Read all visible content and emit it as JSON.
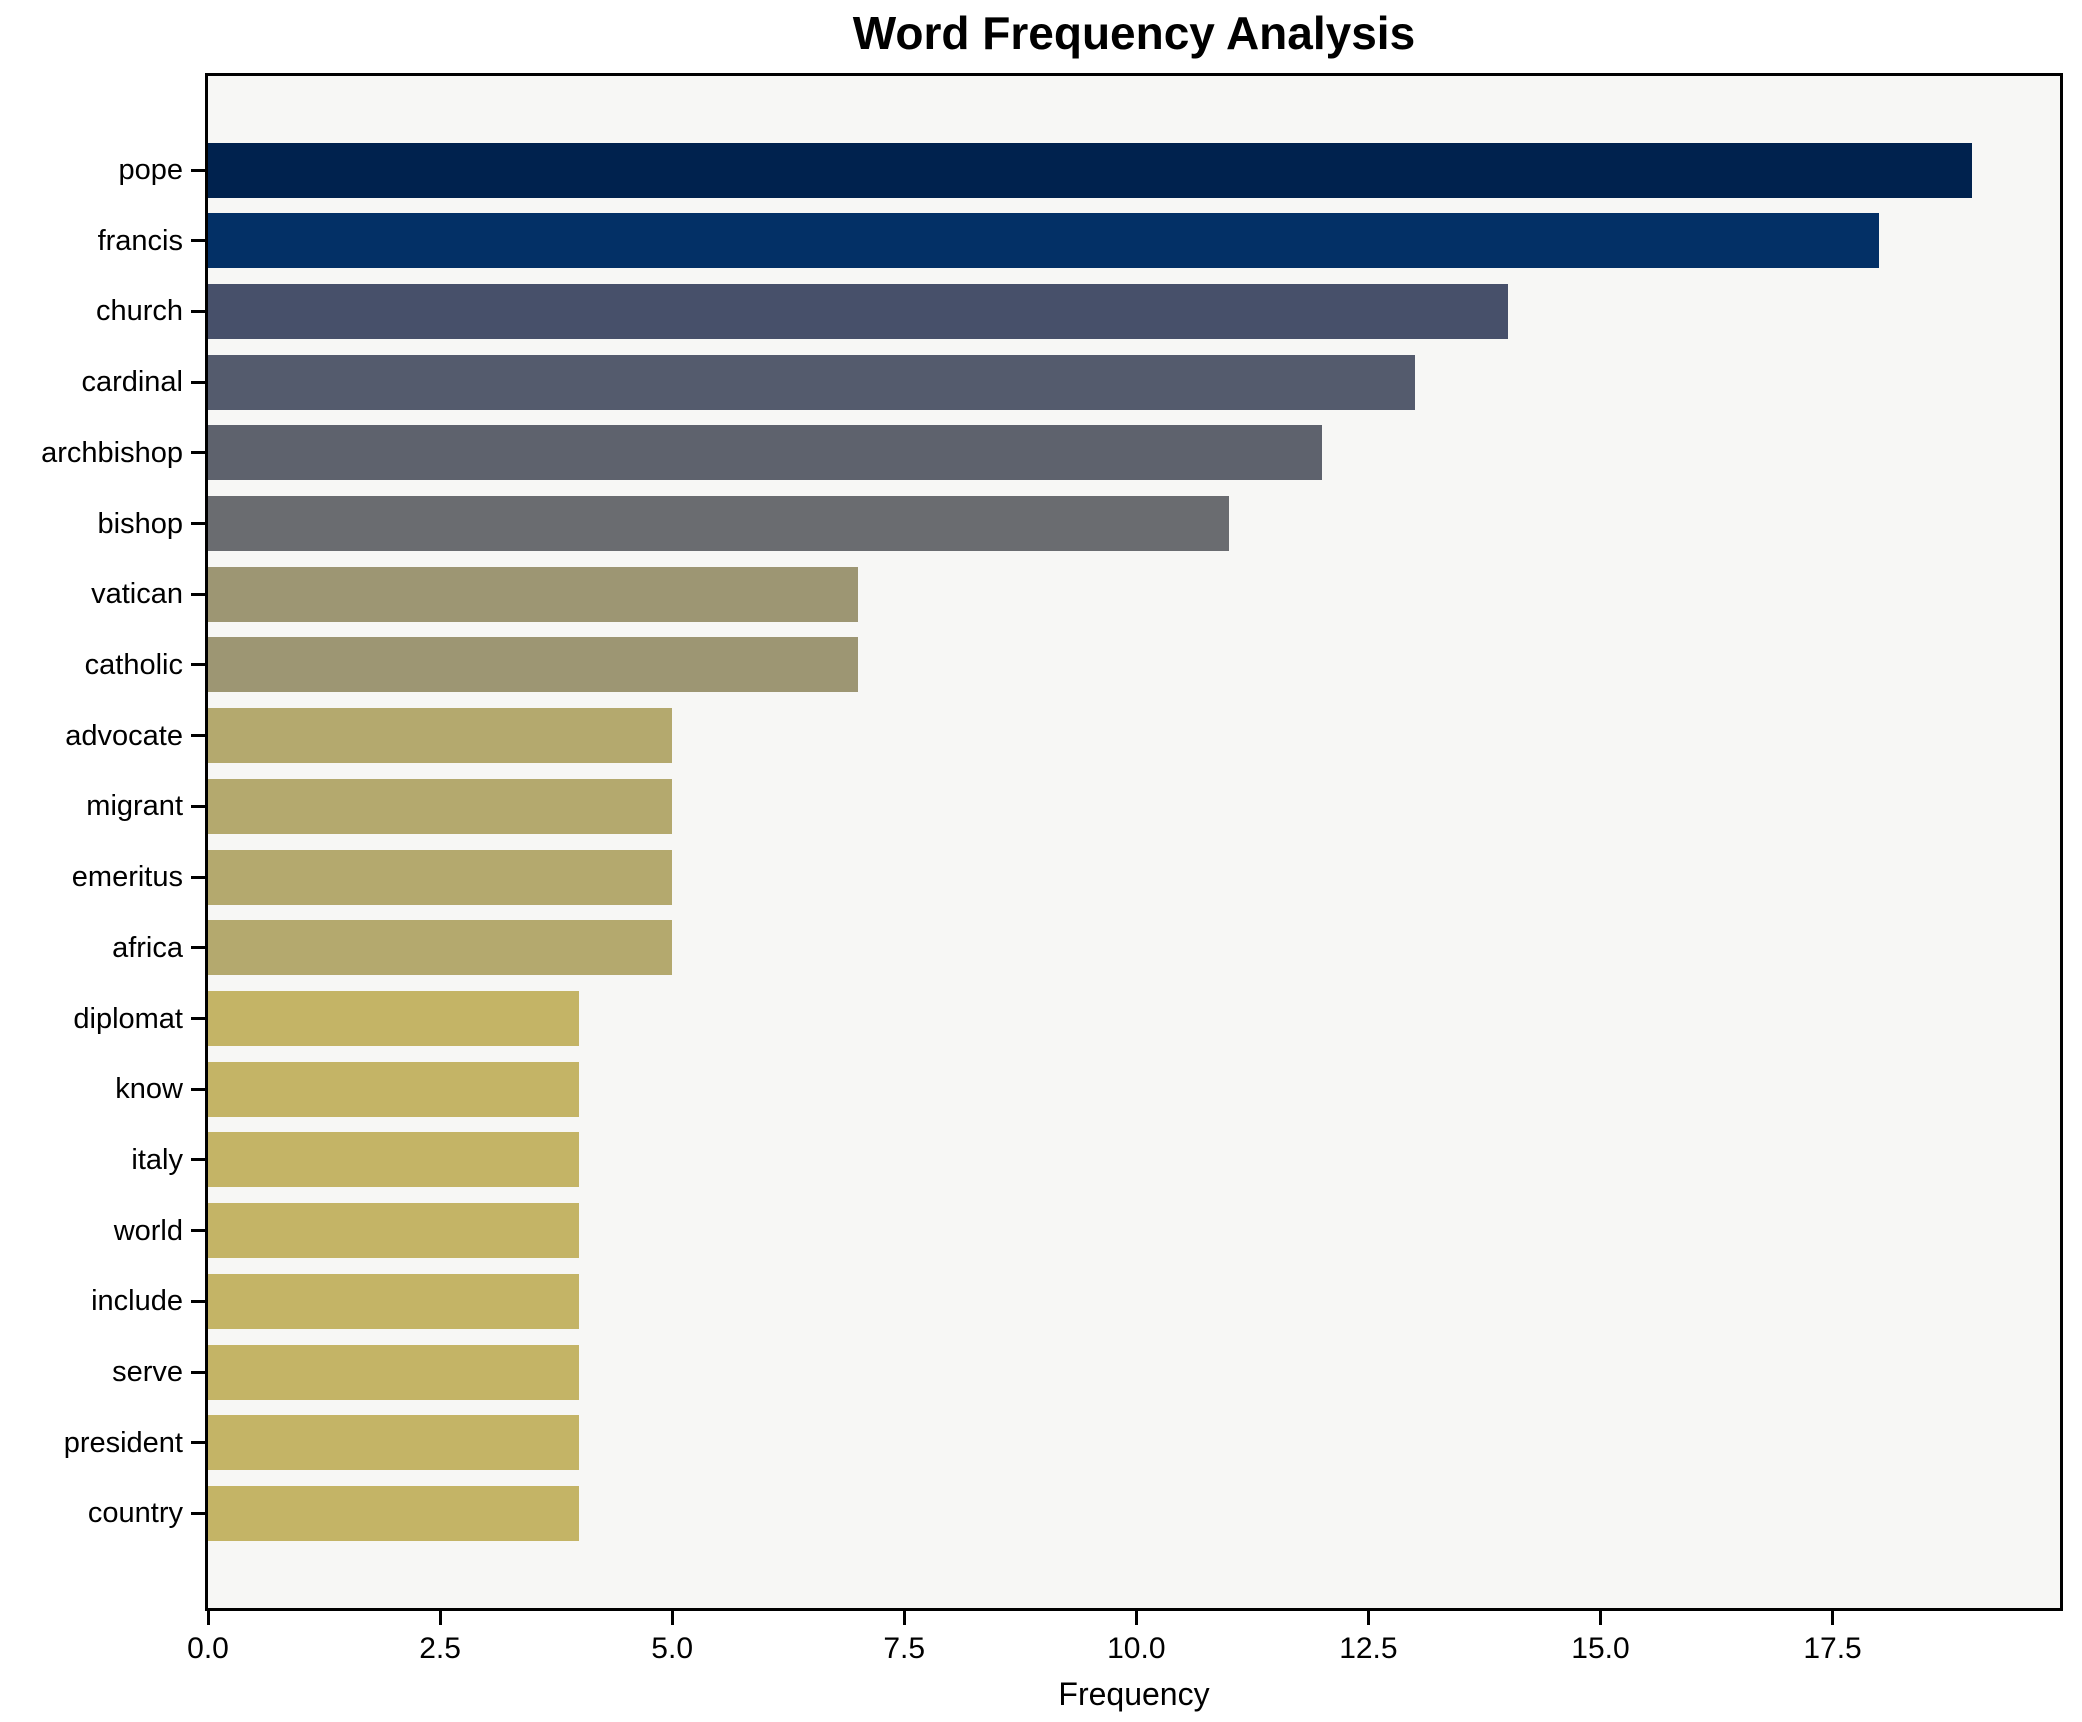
{
  "chart_data": {
    "type": "bar",
    "orientation": "horizontal",
    "title": "Word Frequency Analysis",
    "xlabel": "Frequency",
    "ylabel": "",
    "categories": [
      "pope",
      "francis",
      "church",
      "cardinal",
      "archbishop",
      "bishop",
      "vatican",
      "catholic",
      "advocate",
      "migrant",
      "emeritus",
      "africa",
      "diplomat",
      "know",
      "italy",
      "world",
      "include",
      "serve",
      "president",
      "country"
    ],
    "values": [
      19,
      18,
      14,
      13,
      12,
      11,
      7,
      7,
      5,
      5,
      5,
      5,
      4,
      4,
      4,
      4,
      4,
      4,
      4,
      4
    ],
    "bar_colors": [
      "#00224e",
      "#033066",
      "#47506a",
      "#545b6d",
      "#5e626d",
      "#6a6c70",
      "#9d9673",
      "#9d9673",
      "#b4a96e",
      "#b4a96e",
      "#b4a96e",
      "#b4a96e",
      "#c4b466",
      "#c4b466",
      "#c4b466",
      "#c4b466",
      "#c4b466",
      "#c4b466",
      "#c4b466",
      "#c4b466"
    ],
    "xlim": [
      0,
      19.95
    ],
    "xticks": [
      0,
      2.5,
      5,
      7.5,
      10,
      12.5,
      15,
      17.5
    ],
    "xtick_labels": [
      "0.0",
      "2.5",
      "5.0",
      "7.5",
      "10.0",
      "12.5",
      "15.0",
      "17.5"
    ],
    "grid": false,
    "legend": null,
    "plot_background": "#f7f7f5",
    "figure_background": "#ffffff",
    "spine_color": "#000000"
  }
}
